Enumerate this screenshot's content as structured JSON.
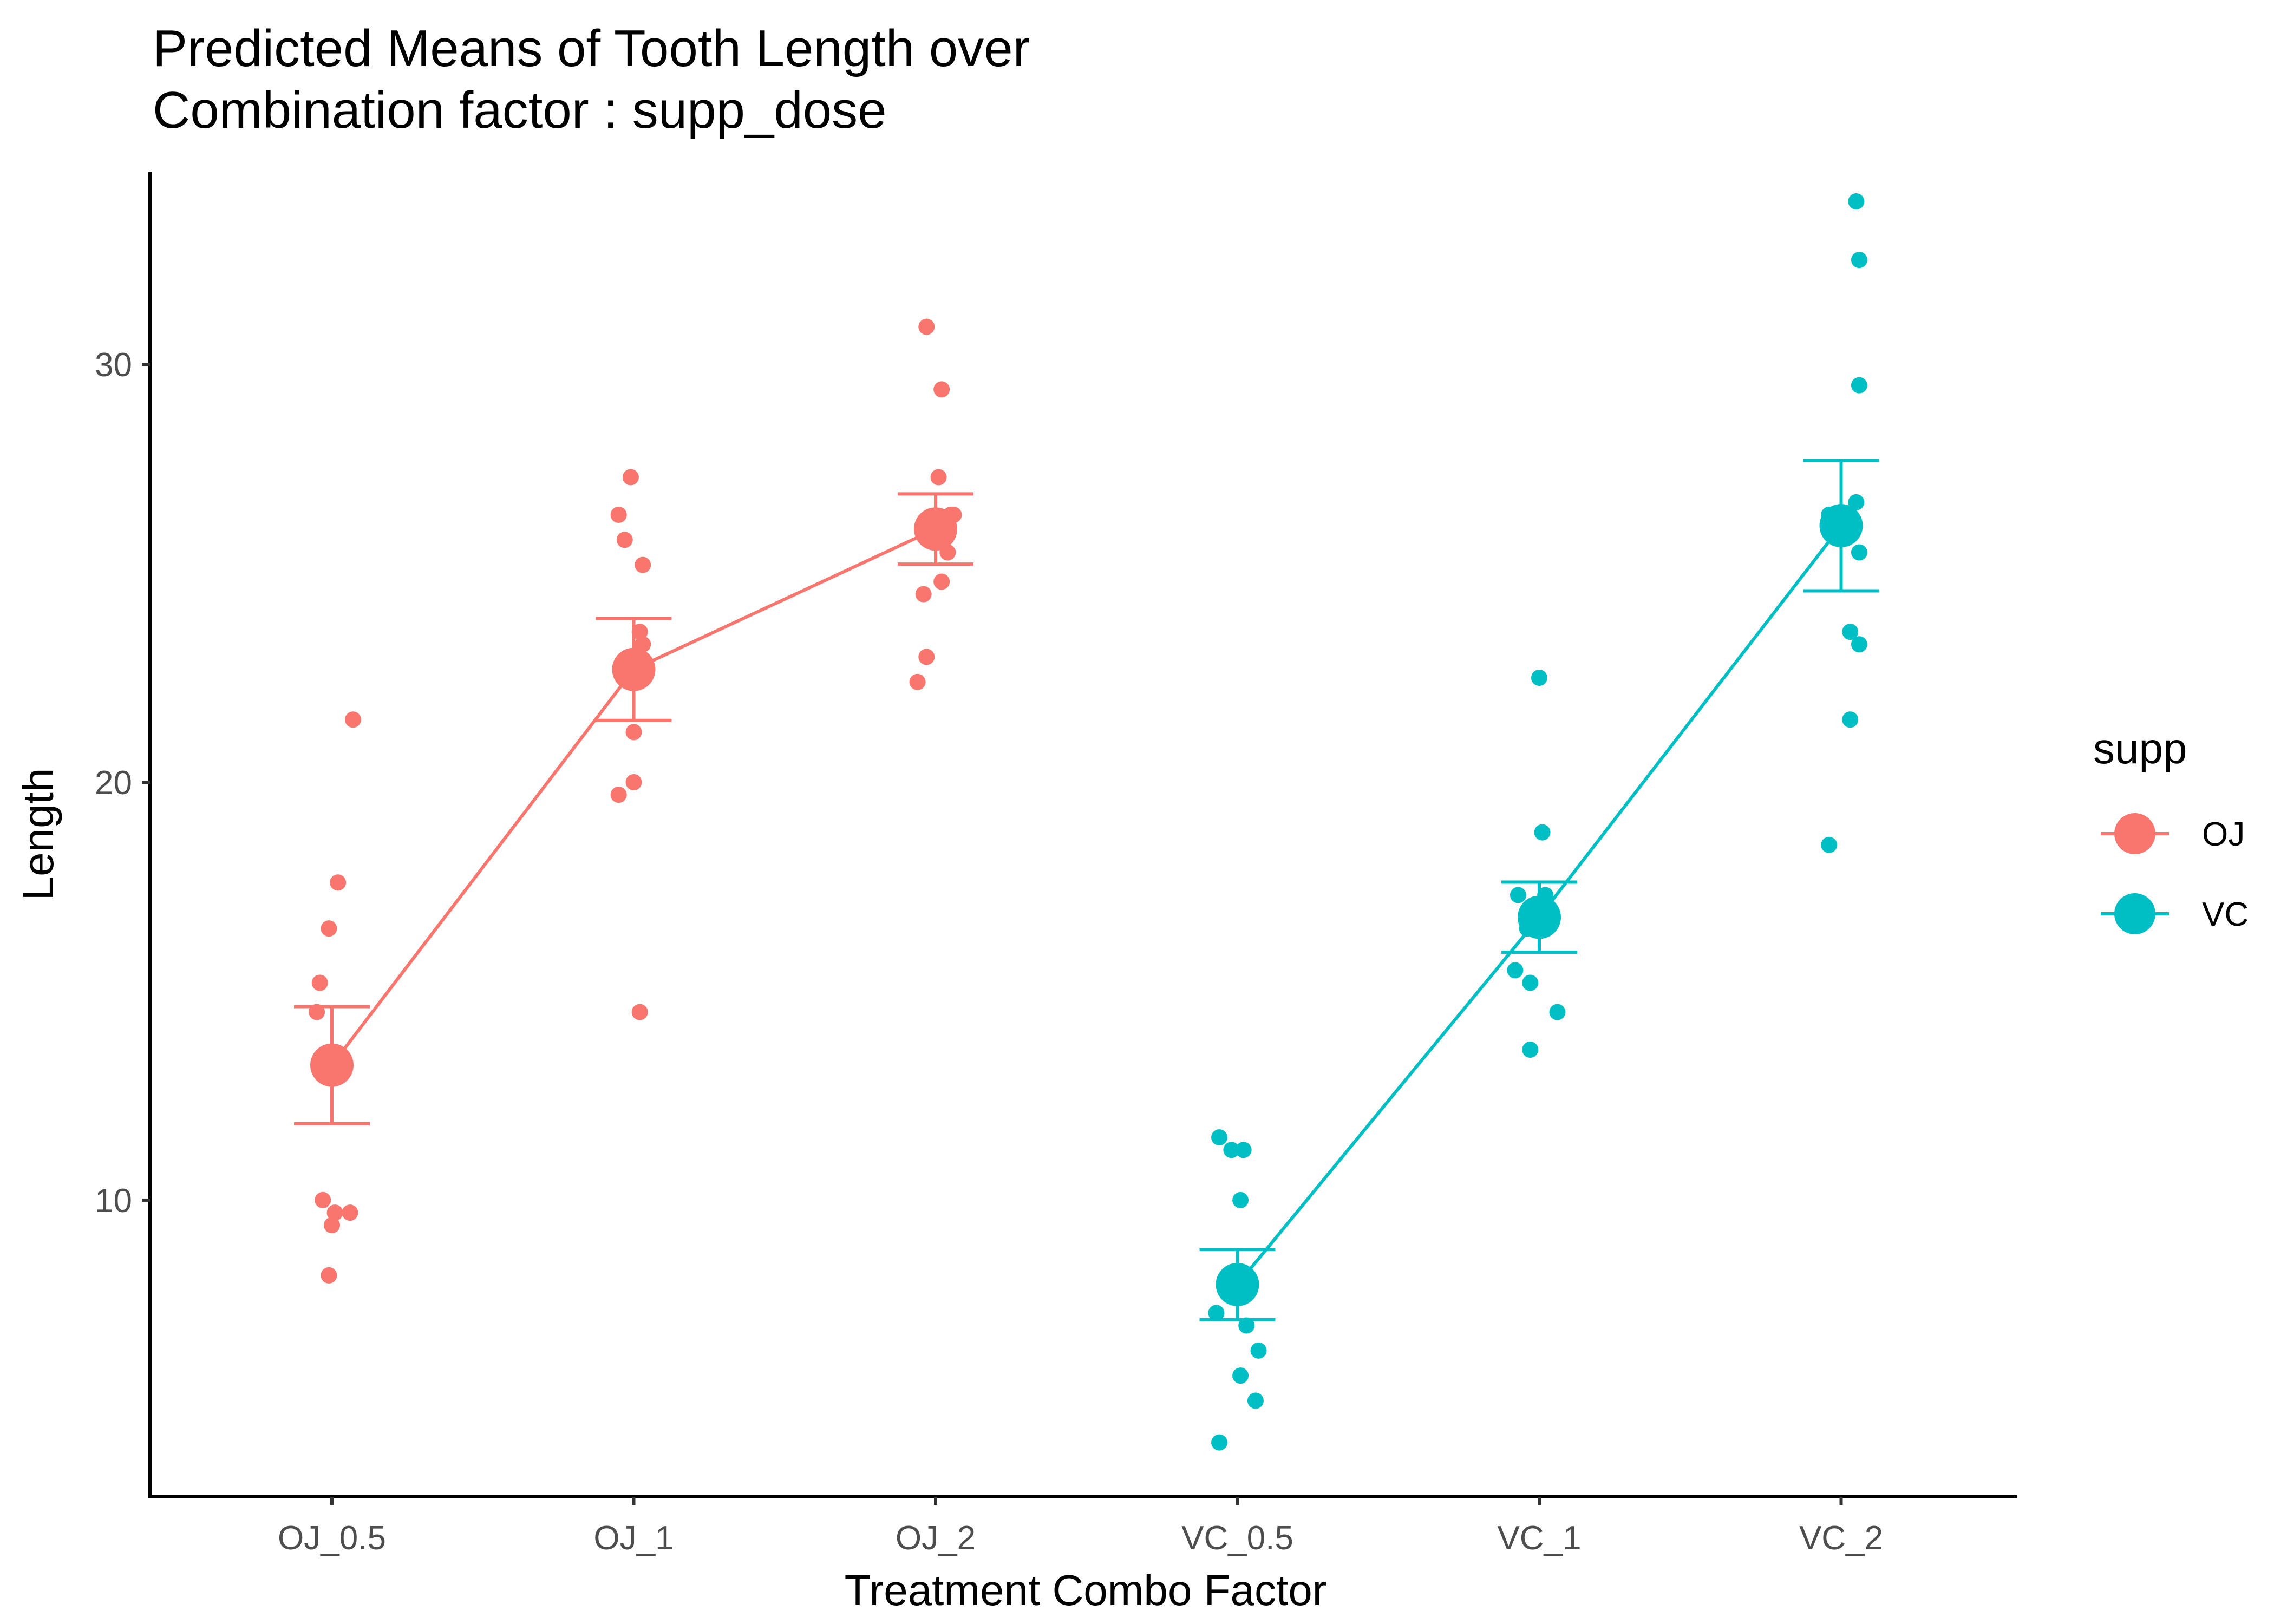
{
  "chart_data": {
    "type": "scatter",
    "title": "Predicted Means of Tooth Length over\nCombination factor : supp_dose",
    "title_lines": [
      "Predicted Means of Tooth Length over",
      "Combination factor : supp_dose"
    ],
    "xlabel": "Treatment Combo Factor",
    "ylabel": "Length",
    "categories": [
      "OJ_0.5",
      "OJ_1",
      "OJ_2",
      "VC_0.5",
      "VC_1",
      "VC_2"
    ],
    "y_ticks": [
      10,
      20,
      30
    ],
    "ylim": [
      2.9,
      34.6
    ],
    "grid": false,
    "legend": {
      "title": "supp",
      "position": "right",
      "items": [
        {
          "label": "OJ",
          "color": "#F8766D"
        },
        {
          "label": "VC",
          "color": "#00BFC4"
        }
      ]
    },
    "series": [
      {
        "name": "OJ",
        "color": "#F8766D",
        "categories": [
          "OJ_0.5",
          "OJ_1",
          "OJ_2"
        ],
        "means": [
          13.23,
          22.7,
          26.06
        ],
        "ci_low": [
          11.83,
          21.48,
          25.22
        ],
        "ci_high": [
          14.63,
          23.92,
          26.9
        ],
        "points": [
          {
            "cat": "OJ_0.5",
            "offset": -0.04,
            "y": 15.2
          },
          {
            "cat": "OJ_0.5",
            "offset": -0.03,
            "y": 10.0
          },
          {
            "cat": "OJ_0.5",
            "offset": -0.05,
            "y": 14.5
          },
          {
            "cat": "OJ_0.5",
            "offset": -0.01,
            "y": 16.5
          },
          {
            "cat": "OJ_0.5",
            "offset": 0.07,
            "y": 21.5
          },
          {
            "cat": "OJ_0.5",
            "offset": 0.01,
            "y": 9.7
          },
          {
            "cat": "OJ_0.5",
            "offset": 0.06,
            "y": 9.7
          },
          {
            "cat": "OJ_0.5",
            "offset": -0.01,
            "y": 8.2
          },
          {
            "cat": "OJ_0.5",
            "offset": 0.02,
            "y": 17.6
          },
          {
            "cat": "OJ_0.5",
            "offset": 0.0,
            "y": 9.4
          },
          {
            "cat": "OJ_1",
            "offset": -0.05,
            "y": 19.7
          },
          {
            "cat": "OJ_1",
            "offset": 0.03,
            "y": 23.3
          },
          {
            "cat": "OJ_1",
            "offset": 0.02,
            "y": 23.6
          },
          {
            "cat": "OJ_1",
            "offset": -0.05,
            "y": 26.4
          },
          {
            "cat": "OJ_1",
            "offset": 0.0,
            "y": 20.0
          },
          {
            "cat": "OJ_1",
            "offset": 0.03,
            "y": 25.2
          },
          {
            "cat": "OJ_1",
            "offset": -0.03,
            "y": 25.8
          },
          {
            "cat": "OJ_1",
            "offset": 0.0,
            "y": 21.2
          },
          {
            "cat": "OJ_1",
            "offset": 0.02,
            "y": 14.5
          },
          {
            "cat": "OJ_1",
            "offset": -0.01,
            "y": 27.3
          },
          {
            "cat": "OJ_2",
            "offset": 0.04,
            "y": 25.5
          },
          {
            "cat": "OJ_2",
            "offset": 0.05,
            "y": 26.4
          },
          {
            "cat": "OJ_2",
            "offset": -0.06,
            "y": 22.4
          },
          {
            "cat": "OJ_2",
            "offset": -0.04,
            "y": 24.5
          },
          {
            "cat": "OJ_2",
            "offset": 0.02,
            "y": 24.8
          },
          {
            "cat": "OJ_2",
            "offset": -0.03,
            "y": 30.9
          },
          {
            "cat": "OJ_2",
            "offset": 0.06,
            "y": 26.4
          },
          {
            "cat": "OJ_2",
            "offset": 0.01,
            "y": 27.3
          },
          {
            "cat": "OJ_2",
            "offset": 0.02,
            "y": 29.4
          },
          {
            "cat": "OJ_2",
            "offset": -0.03,
            "y": 23.0
          }
        ]
      },
      {
        "name": "VC",
        "color": "#00BFC4",
        "categories": [
          "VC_0.5",
          "VC_1",
          "VC_2"
        ],
        "means": [
          7.98,
          16.77,
          26.14
        ],
        "ci_low": [
          7.14,
          15.93,
          24.58
        ],
        "ci_high": [
          8.82,
          17.61,
          27.7
        ],
        "points": [
          {
            "cat": "VC_0.5",
            "offset": -0.06,
            "y": 4.2
          },
          {
            "cat": "VC_0.5",
            "offset": -0.06,
            "y": 11.5
          },
          {
            "cat": "VC_0.5",
            "offset": -0.07,
            "y": 7.3
          },
          {
            "cat": "VC_0.5",
            "offset": 0.01,
            "y": 5.8
          },
          {
            "cat": "VC_0.5",
            "offset": 0.07,
            "y": 6.4
          },
          {
            "cat": "VC_0.5",
            "offset": 0.01,
            "y": 10.0
          },
          {
            "cat": "VC_0.5",
            "offset": 0.02,
            "y": 11.2
          },
          {
            "cat": "VC_0.5",
            "offset": -0.02,
            "y": 11.2
          },
          {
            "cat": "VC_0.5",
            "offset": 0.06,
            "y": 5.2
          },
          {
            "cat": "VC_0.5",
            "offset": 0.03,
            "y": 7.0
          },
          {
            "cat": "VC_1",
            "offset": -0.04,
            "y": 16.5
          },
          {
            "cat": "VC_1",
            "offset": -0.04,
            "y": 16.5
          },
          {
            "cat": "VC_1",
            "offset": -0.03,
            "y": 15.2
          },
          {
            "cat": "VC_1",
            "offset": -0.07,
            "y": 17.3
          },
          {
            "cat": "VC_1",
            "offset": 0.0,
            "y": 22.5
          },
          {
            "cat": "VC_1",
            "offset": 0.02,
            "y": 17.3
          },
          {
            "cat": "VC_1",
            "offset": -0.03,
            "y": 13.6
          },
          {
            "cat": "VC_1",
            "offset": 0.06,
            "y": 14.5
          },
          {
            "cat": "VC_1",
            "offset": 0.01,
            "y": 18.8
          },
          {
            "cat": "VC_1",
            "offset": -0.08,
            "y": 15.5
          },
          {
            "cat": "VC_2",
            "offset": 0.03,
            "y": 23.6
          },
          {
            "cat": "VC_2",
            "offset": -0.04,
            "y": 18.5
          },
          {
            "cat": "VC_2",
            "offset": 0.05,
            "y": 33.9
          },
          {
            "cat": "VC_2",
            "offset": 0.06,
            "y": 25.5
          },
          {
            "cat": "VC_2",
            "offset": -0.04,
            "y": 26.4
          },
          {
            "cat": "VC_2",
            "offset": 0.06,
            "y": 32.5
          },
          {
            "cat": "VC_2",
            "offset": 0.05,
            "y": 26.7
          },
          {
            "cat": "VC_2",
            "offset": 0.03,
            "y": 21.5
          },
          {
            "cat": "VC_2",
            "offset": 0.06,
            "y": 23.3
          },
          {
            "cat": "VC_2",
            "offset": 0.06,
            "y": 29.5
          }
        ]
      }
    ]
  }
}
